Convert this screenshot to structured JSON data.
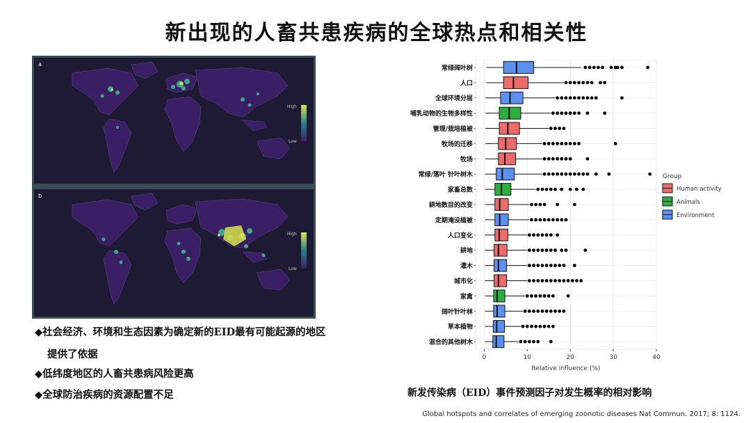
{
  "slide": {
    "title": "新出现的人畜共患疾病的全球热点和相关性",
    "bullets": [
      "◆社会经济、环境和生态因素为确定新的EID最有可能起源的地区",
      "提供了依据",
      "◆低纬度地区的人畜共患病风险更高",
      "◆全球防治疾病的资源配置不足"
    ],
    "caption": "新发传染病（EID）事件预测因子对发生概率的相对影响",
    "source": "Global hotspots and correlates of emerging zoonotic diseases  Nat Commun. 2017; 8: 1124."
  },
  "maps": [
    {
      "panel_label": "a",
      "legend_high": "High",
      "legend_low": "Low"
    },
    {
      "panel_label": "b",
      "legend_high": "High",
      "legend_low": "Low"
    }
  ],
  "colors": {
    "human_activity": "#ee6b6b",
    "animals": "#2eae3e",
    "environment": "#5b8ff0",
    "map_bg": "#1f1a33",
    "map_land": "#3b1f66",
    "map_frame": "#3a4b57"
  },
  "chart_data": {
    "type": "boxplot",
    "orientation": "horizontal",
    "xlabel": "Relative influence (%)",
    "xlim": [
      -2,
      40
    ],
    "xticks": [
      0,
      10,
      20,
      30,
      40
    ],
    "legend": {
      "title": "Group",
      "position": "right",
      "entries": [
        "Human activity",
        "Animals",
        "Environment"
      ]
    },
    "categories": [
      {
        "label": "常绿阔叶树",
        "group": "Environment",
        "q1": 4.5,
        "median": 7.5,
        "q3": 11.5,
        "whisker_lo": 0.5,
        "whisker_hi": 22.5,
        "outliers": [
          23.5,
          24.5,
          25.5,
          26.5,
          27.5,
          29.5,
          30.5,
          31,
          32,
          38
        ]
      },
      {
        "label": "人口",
        "group": "Human activity",
        "q1": 4.5,
        "median": 6.8,
        "q3": 10.2,
        "whisker_lo": 0.5,
        "whisker_hi": 18.5,
        "outliers": [
          19,
          20,
          21,
          22,
          23,
          24,
          25,
          27,
          28
        ]
      },
      {
        "label": "全球环境分层",
        "group": "Environment",
        "q1": 3.8,
        "median": 6,
        "q3": 9,
        "whisker_lo": 0.3,
        "whisker_hi": 16.5,
        "outliers": [
          17,
          18,
          19,
          20,
          21,
          22,
          23,
          24,
          25,
          26,
          32
        ]
      },
      {
        "label": "哺乳动物的生物多样性",
        "group": "Animals",
        "q1": 3.5,
        "median": 5.8,
        "q3": 8.5,
        "whisker_lo": 0.3,
        "whisker_hi": 15.5,
        "outliers": [
          16,
          17,
          18,
          19,
          20,
          21,
          22,
          24,
          28
        ]
      },
      {
        "label": "管理/栽培植被",
        "group": "Human activity",
        "q1": 3.5,
        "median": 5.5,
        "q3": 8.2,
        "whisker_lo": 0.3,
        "whisker_hi": 15,
        "outliers": [
          15.5,
          16.5,
          17.5,
          18.5
        ]
      },
      {
        "label": "牧场的迁移",
        "group": "Human activity",
        "q1": 3.3,
        "median": 5,
        "q3": 7.5,
        "whisker_lo": 0.3,
        "whisker_hi": 13.5,
        "outliers": [
          14,
          15,
          16,
          17,
          18,
          19,
          20,
          21,
          22,
          30.5
        ]
      },
      {
        "label": "牧场",
        "group": "Human activity",
        "q1": 3.3,
        "median": 4.8,
        "q3": 7.3,
        "whisker_lo": 0.3,
        "whisker_hi": 13.5,
        "outliers": [
          14,
          15,
          16,
          17,
          18,
          19,
          20,
          24
        ]
      },
      {
        "label": "常绿/落叶 针叶树木",
        "group": "Environment",
        "q1": 2.8,
        "median": 4.2,
        "q3": 7,
        "whisker_lo": 0.2,
        "whisker_hi": 13.5,
        "outliers": [
          14,
          15,
          16,
          17,
          18,
          19,
          20,
          21,
          22,
          23,
          24,
          26,
          29,
          38.5
        ]
      },
      {
        "label": "家畜总数",
        "group": "Animals",
        "q1": 2.5,
        "median": 4,
        "q3": 6.2,
        "whisker_lo": 0.2,
        "whisker_hi": 12,
        "outliers": [
          12.5,
          13.5,
          14.5,
          15.5,
          16.5,
          18,
          20,
          21.5,
          23
        ]
      },
      {
        "label": "耕地数目的改变",
        "group": "Human activity",
        "q1": 2.5,
        "median": 3.6,
        "q3": 5.6,
        "whisker_lo": 0.2,
        "whisker_hi": 10.5,
        "outliers": [
          11,
          12,
          13,
          14,
          17,
          21
        ]
      },
      {
        "label": "定期淹没植被",
        "group": "Environment",
        "q1": 2.5,
        "median": 3.6,
        "q3": 5.6,
        "whisker_lo": 0.2,
        "whisker_hi": 10.5,
        "outliers": [
          11,
          12,
          13,
          14,
          15,
          16,
          17,
          18,
          19
        ]
      },
      {
        "label": "人口变化",
        "group": "Human activity",
        "q1": 2.5,
        "median": 3.5,
        "q3": 5.5,
        "whisker_lo": 0.2,
        "whisker_hi": 10,
        "outliers": [
          10.5,
          11.5,
          12.5,
          13.5,
          14.5,
          15.5,
          17
        ]
      },
      {
        "label": "耕地",
        "group": "Human activity",
        "q1": 2.3,
        "median": 3.3,
        "q3": 5.3,
        "whisker_lo": 0.2,
        "whisker_hi": 10,
        "outliers": [
          10.5,
          11.5,
          12.5,
          13.5,
          14.5,
          15.5,
          16.5,
          18,
          19,
          23.5
        ]
      },
      {
        "label": "灌木",
        "group": "Environment",
        "q1": 2.3,
        "median": 3.3,
        "q3": 5.2,
        "whisker_lo": 0.2,
        "whisker_hi": 10,
        "outliers": [
          10.5,
          11.5,
          12.5,
          13.5,
          14.5,
          15.5,
          16.5,
          17.5,
          18.5,
          21
        ]
      },
      {
        "label": "城市化",
        "group": "Human activity",
        "q1": 2.3,
        "median": 3.3,
        "q3": 5.2,
        "whisker_lo": 0.2,
        "whisker_hi": 10,
        "outliers": [
          10.5,
          11.5,
          12.5,
          13.5,
          14.5,
          15.5,
          16.5,
          17.5,
          18.5,
          19.5,
          20.5,
          21.5,
          22.5
        ]
      },
      {
        "label": "家禽",
        "group": "Animals",
        "q1": 2.2,
        "median": 3,
        "q3": 4.8,
        "whisker_lo": 0.2,
        "whisker_hi": 9.5,
        "outliers": [
          10,
          11,
          12,
          13,
          14,
          15,
          16,
          19.5
        ]
      },
      {
        "label": "阔叶针叶林",
        "group": "Environment",
        "q1": 2.2,
        "median": 3,
        "q3": 4.8,
        "whisker_lo": 0.2,
        "whisker_hi": 9,
        "outliers": [
          9.5,
          10.5,
          11.5,
          12.5,
          13.5,
          14.5,
          15.5,
          16.5,
          17.5,
          18.5
        ]
      },
      {
        "label": "草本植物",
        "group": "Environment",
        "q1": 2.1,
        "median": 2.9,
        "q3": 4.7,
        "whisker_lo": 0.2,
        "whisker_hi": 8.5,
        "outliers": [
          9,
          10,
          11,
          12,
          13,
          14,
          15,
          16
        ]
      },
      {
        "label": "混合的其他树木",
        "group": "Environment",
        "q1": 2,
        "median": 2.8,
        "q3": 4.6,
        "whisker_lo": 0.2,
        "whisker_hi": 8,
        "outliers": [
          8.5,
          9.5,
          10.5,
          11.5,
          12.5,
          15.5
        ]
      }
    ]
  }
}
